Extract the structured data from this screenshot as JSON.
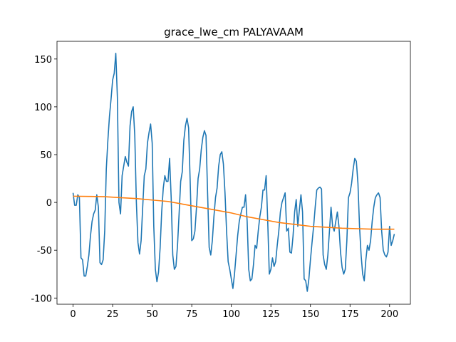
{
  "chart_data": {
    "type": "line",
    "title": "grace_lwe_cm PALYAVAAM",
    "xlim": [
      -10.15,
      213.15
    ],
    "ylim": [
      -106.5,
      168.5
    ],
    "xticks": [
      0,
      25,
      50,
      75,
      100,
      125,
      150,
      175,
      200
    ],
    "yticks": [
      -100,
      -50,
      0,
      50,
      100,
      150
    ],
    "series": [
      {
        "color": "#1f77b4",
        "values": [
          10,
          -3,
          -3,
          8,
          5,
          -58,
          -60,
          -77,
          -77,
          -67,
          -55,
          -35,
          -20,
          -12,
          -8,
          8,
          -5,
          -63,
          -65,
          -60,
          -30,
          35,
          65,
          90,
          108,
          128,
          135,
          156,
          110,
          0,
          -12,
          28,
          38,
          48,
          42,
          38,
          80,
          95,
          100,
          70,
          0,
          -42,
          -54,
          -40,
          -5,
          28,
          35,
          62,
          73,
          82,
          62,
          -25,
          -70,
          -83,
          -73,
          -48,
          -10,
          15,
          28,
          22,
          22,
          46,
          5,
          -55,
          -70,
          -67,
          -45,
          -12,
          22,
          32,
          65,
          80,
          88,
          78,
          22,
          -40,
          -38,
          -30,
          -5,
          25,
          35,
          55,
          68,
          75,
          70,
          10,
          -47,
          -55,
          -40,
          -15,
          5,
          15,
          38,
          50,
          53,
          40,
          10,
          -30,
          -62,
          -70,
          -80,
          -90,
          -75,
          -55,
          -35,
          -20,
          -12,
          -5,
          -5,
          8,
          -20,
          -70,
          -82,
          -80,
          -65,
          -45,
          -48,
          -30,
          -15,
          -5,
          13,
          13,
          28,
          -20,
          -75,
          -70,
          -58,
          -67,
          -62,
          -45,
          -30,
          -10,
          0,
          5,
          10,
          -30,
          -27,
          -52,
          -53,
          -35,
          -10,
          3,
          -25,
          -8,
          8,
          -10,
          -80,
          -82,
          -93,
          -80,
          -60,
          -42,
          -25,
          -5,
          13,
          15,
          16,
          14,
          -55,
          -65,
          -70,
          -55,
          -30,
          -5,
          -25,
          -30,
          -20,
          -10,
          -25,
          -52,
          -68,
          -75,
          -70,
          -40,
          5,
          10,
          20,
          35,
          46,
          43,
          20,
          -25,
          -55,
          -75,
          -82,
          -60,
          -45,
          -50,
          -40,
          -20,
          -5,
          5,
          8,
          10,
          5,
          -30,
          -50,
          -55,
          -57,
          -52,
          -25,
          -45,
          -40,
          -33
        ]
      },
      {
        "color": "#ff7f0e",
        "x": [
          0,
          10,
          20,
          30,
          40,
          50,
          60,
          70,
          80,
          90,
          100,
          110,
          120,
          130,
          140,
          150,
          160,
          170,
          180,
          190,
          200,
          203
        ],
        "values": [
          6.5,
          6.3,
          6,
          5,
          4,
          2.5,
          1,
          -2,
          -5,
          -8,
          -11,
          -15,
          -18,
          -21,
          -23,
          -25,
          -26,
          -27,
          -27.5,
          -28,
          -28,
          -28
        ]
      }
    ]
  }
}
